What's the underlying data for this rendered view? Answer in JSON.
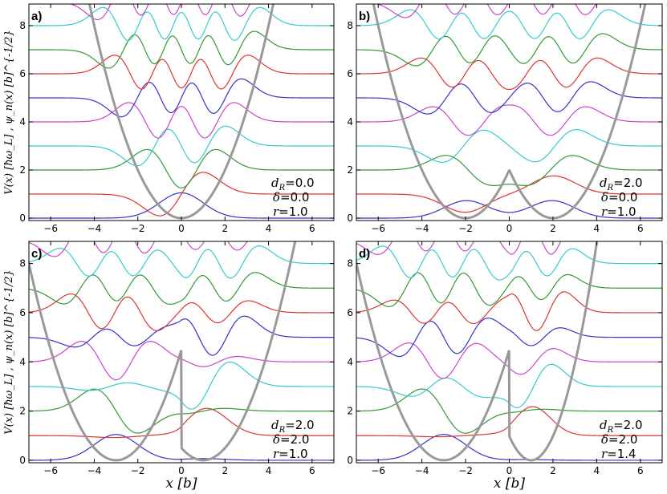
{
  "chart_data": {
    "type": "line",
    "xlabel": "x [b]",
    "ylabel": "V(x) [ħω_L] , ψ_n(x) [b]^{-1/2}",
    "xlim": [
      -7,
      7
    ],
    "ylim": [
      -0.1,
      8.9
    ],
    "x_ticks": [
      "-6",
      "-4",
      "-2",
      "0",
      "2",
      "4",
      "6"
    ],
    "y_ticks": [
      "0",
      "2",
      "4",
      "6",
      "8"
    ],
    "grid": false,
    "potential_color": "#999999",
    "series_colors": [
      "#3333cc",
      "#dd3333",
      "#339933",
      "#33cccc",
      "#cc44cc"
    ],
    "levels": [
      0,
      1,
      2,
      3,
      4,
      5,
      6,
      7,
      8,
      9
    ],
    "panels": [
      {
        "tag": "a)",
        "params": {
          "d_R": "0.0",
          "delta": "0.0",
          "r": "1.0"
        },
        "ann": [
          "=0.0",
          "=0.0",
          "=1.0"
        ]
      },
      {
        "tag": "b)",
        "params": {
          "d_R": "2.0",
          "delta": "0.0",
          "r": "1.0"
        },
        "ann": [
          "=2.0",
          "=0.0",
          "=1.0"
        ]
      },
      {
        "tag": "c)",
        "params": {
          "d_R": "2.0",
          "delta": "2.0",
          "r": "1.0"
        },
        "ann": [
          "=2.0",
          "=2.0",
          "=1.0"
        ]
      },
      {
        "tag": "d)",
        "params": {
          "d_R": "2.0",
          "delta": "2.0",
          "r": "1.4"
        },
        "ann": [
          "=2.0",
          "=2.0",
          "=1.4"
        ]
      }
    ]
  }
}
